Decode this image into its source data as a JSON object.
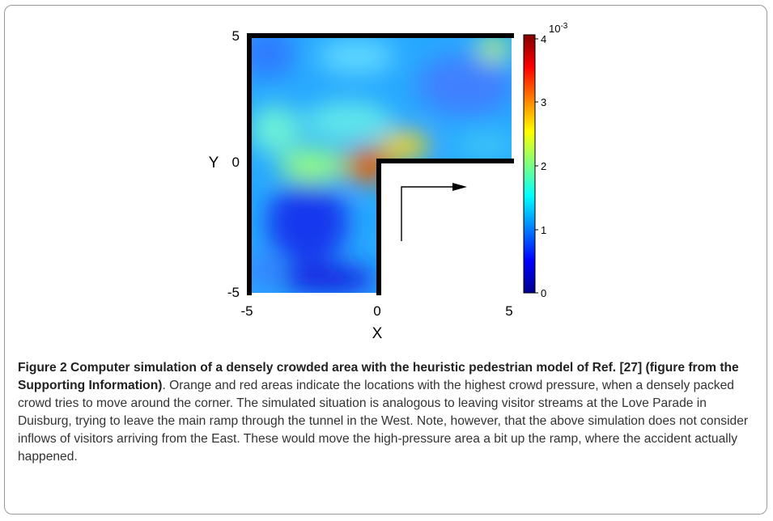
{
  "figure": {
    "x_axis": {
      "label": "X",
      "ticks": [
        "-5",
        "0",
        "5"
      ]
    },
    "y_axis": {
      "label": "Y",
      "ticks": [
        "5",
        "0",
        "-5"
      ]
    },
    "colorbar": {
      "ticks": [
        "0",
        "1",
        "2",
        "3",
        "4"
      ],
      "exponent_base": "10",
      "exponent_power": "-3",
      "min": 0,
      "max": 4,
      "colormap": "jet"
    }
  },
  "chart_data": {
    "type": "heatmap",
    "title": "",
    "xlabel": "X",
    "ylabel": "Y",
    "xlim": [
      -5,
      5
    ],
    "ylim": [
      -5,
      5
    ],
    "colorbar_range": [
      0,
      0.004
    ],
    "colorbar_scale_label": "10^-3",
    "geometry": "L-shaped corridor: region x in [-5,5], y in [-5,5] excluding x>0,y<0; walls along top, left, and inner corner",
    "hotspots": [
      {
        "x": -0.3,
        "y": 0.0,
        "value": 0.004
      },
      {
        "x": 1.0,
        "y": 0.6,
        "value": 0.0031
      },
      {
        "x": -1.5,
        "y": 0.3,
        "value": 0.0024
      },
      {
        "x": 4.3,
        "y": 4.6,
        "value": 0.0023
      },
      {
        "x": -2.8,
        "y": 2.2,
        "value": 0.0017
      }
    ],
    "lowspots": [
      {
        "x": -2.8,
        "y": -2.8,
        "value": 0.0003
      },
      {
        "x": 3.3,
        "y": 3.0,
        "value": 0.0008
      },
      {
        "x": -3.8,
        "y": 4.0,
        "value": 0.0009
      },
      {
        "x": -2.0,
        "y": -4.6,
        "value": 0.0004
      }
    ],
    "flow_arrow": "from (1.0,-3.2) up to (1.0,1.0) then right to (3.5,1.0)"
  },
  "caption": {
    "lead": "Figure 2  Computer simulation of a densely crowded area with the heuristic pedestrian model of Ref. [27] (figure from the Supporting Information)",
    "body": ". Orange and red areas indicate the locations with the highest crowd pressure, when a densely packed crowd tries to move around the corner. The simulated situation is analogous to leaving visitor streams at the Love Parade in Duisburg, trying to leave the main ramp through the tunnel in the West. Note, however, that the above simulation does not consider inflows of visitors arriving from the East. These would move the high-pressure area a bit up the ramp, where the accident actually happened."
  }
}
